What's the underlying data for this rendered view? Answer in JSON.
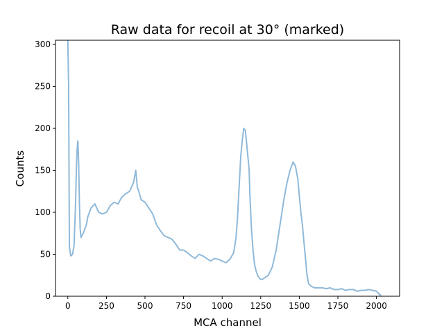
{
  "chart_data": {
    "type": "line",
    "title": "Raw data for recoil at 30° (marked)",
    "xlabel": "MCA channel",
    "ylabel": "Counts",
    "xlim": [
      -80,
      2150
    ],
    "ylim": [
      0,
      305
    ],
    "xticks": [
      0,
      250,
      500,
      750,
      1000,
      1250,
      1500,
      1750,
      2000
    ],
    "yticks": [
      0,
      50,
      100,
      150,
      200,
      250,
      300
    ],
    "grid": false,
    "legend": "none",
    "series": [
      {
        "color": "#8fb9d9",
        "x": [
          0,
          5,
          10,
          15,
          20,
          30,
          40,
          50,
          55,
          60,
          65,
          70,
          75,
          80,
          85,
          90,
          100,
          110,
          120,
          130,
          140,
          150,
          175,
          200,
          225,
          250,
          275,
          300,
          325,
          350,
          375,
          400,
          425,
          440,
          450,
          460,
          475,
          500,
          525,
          550,
          575,
          600,
          625,
          650,
          675,
          700,
          725,
          750,
          775,
          800,
          825,
          850,
          875,
          900,
          925,
          950,
          975,
          1000,
          1025,
          1050,
          1075,
          1090,
          1100,
          1110,
          1120,
          1130,
          1140,
          1150,
          1160,
          1165,
          1170,
          1175,
          1180,
          1190,
          1200,
          1210,
          1220,
          1230,
          1240,
          1250,
          1260,
          1275,
          1300,
          1325,
          1350,
          1375,
          1400,
          1420,
          1440,
          1460,
          1475,
          1490,
          1500,
          1510,
          1520,
          1530,
          1540,
          1550,
          1560,
          1575,
          1600,
          1625,
          1650,
          1675,
          1700,
          1725,
          1750,
          1775,
          1800,
          1825,
          1850,
          1875,
          1900,
          1925,
          1950,
          1975,
          2000,
          2010,
          2020,
          2030
        ],
        "y": [
          305,
          250,
          60,
          52,
          48,
          50,
          60,
          110,
          150,
          175,
          185,
          160,
          110,
          80,
          70,
          72,
          75,
          80,
          85,
          95,
          100,
          105,
          110,
          100,
          98,
          100,
          108,
          112,
          110,
          118,
          122,
          125,
          135,
          150,
          130,
          125,
          115,
          112,
          105,
          98,
          85,
          78,
          72,
          70,
          68,
          62,
          55,
          55,
          52,
          48,
          45,
          50,
          48,
          45,
          42,
          45,
          44,
          42,
          40,
          44,
          52,
          70,
          95,
          130,
          165,
          185,
          200,
          198,
          180,
          170,
          160,
          150,
          120,
          80,
          55,
          38,
          30,
          25,
          22,
          20,
          20,
          22,
          25,
          35,
          55,
          85,
          115,
          135,
          150,
          160,
          155,
          140,
          120,
          100,
          85,
          65,
          45,
          25,
          15,
          12,
          10,
          10,
          10,
          9,
          10,
          8,
          8,
          9,
          7,
          8,
          8,
          6,
          7,
          7,
          8,
          7,
          6,
          4,
          2,
          1
        ]
      }
    ]
  }
}
